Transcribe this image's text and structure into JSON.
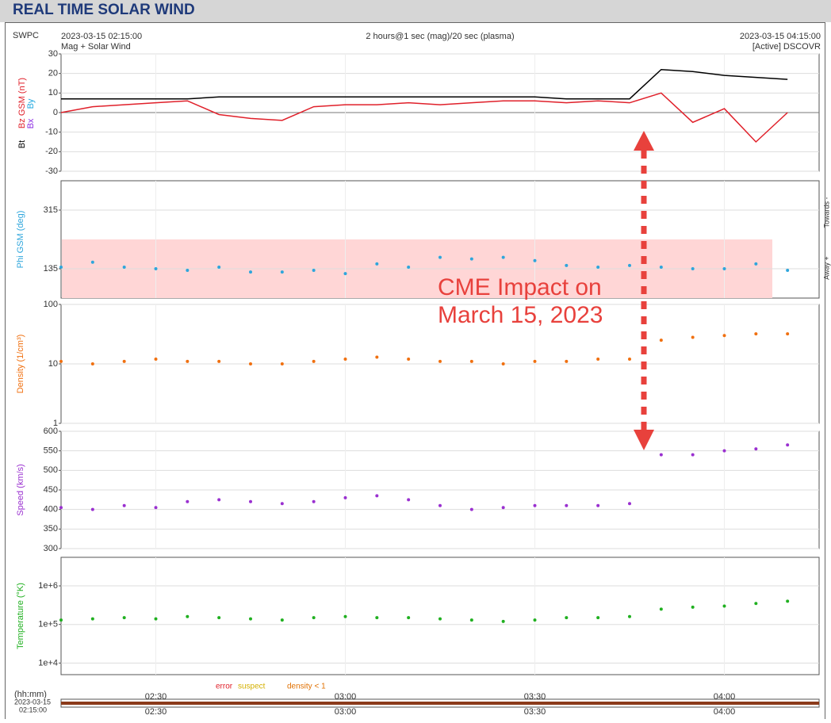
{
  "title": "REAL TIME SOLAR WIND",
  "header": {
    "agency": "SWPC",
    "start": "2023-03-15 02:15:00",
    "subtitle": "Mag + Solar Wind",
    "center": "2 hours@1 sec (mag)/20 sec (plasma)",
    "end": "2023-03-15 04:15:00",
    "source": "[Active] DSCOVR"
  },
  "time_axis": {
    "label": "(hh:mm)",
    "start_date": "2023-03-15",
    "start_time": "02:15:00",
    "xlim": [
      "02:15",
      "04:15"
    ],
    "xticks": [
      "02:30",
      "03:00",
      "03:30",
      "04:00"
    ]
  },
  "chart_data": [
    {
      "type": "line",
      "ylim": [
        -30,
        30
      ],
      "yticks": [
        -30,
        -20,
        -10,
        0,
        10,
        20,
        30
      ],
      "log": false,
      "grid": true,
      "extra_labels": [
        {
          "text": "Bx",
          "color": "#8a2be2"
        },
        {
          "text": "By",
          "color": "#1fa8e0"
        }
      ],
      "x": [
        "02:15",
        "02:20",
        "02:25",
        "02:30",
        "02:35",
        "02:40",
        "02:45",
        "02:50",
        "02:55",
        "03:00",
        "03:05",
        "03:10",
        "03:15",
        "03:20",
        "03:25",
        "03:30",
        "03:35",
        "03:40",
        "03:45",
        "03:50",
        "03:55",
        "04:00",
        "04:05",
        "04:10"
      ],
      "series": [
        {
          "name": "Bt",
          "color": "#000000",
          "values": [
            7,
            7,
            7,
            7,
            7,
            8,
            8,
            8,
            8,
            8,
            8,
            8,
            8,
            8,
            8,
            8,
            7,
            7,
            7,
            22,
            21,
            19,
            18,
            17
          ]
        },
        {
          "name": "Bz GSM (nT)",
          "color": "#e0202a",
          "values": [
            0,
            3,
            4,
            5,
            6,
            -1,
            -3,
            -4,
            3,
            4,
            4,
            5,
            4,
            5,
            6,
            6,
            5,
            6,
            5,
            10,
            -5,
            2,
            -15,
            0
          ]
        }
      ]
    },
    {
      "type": "scatter",
      "ylabel": "Phi GSM (deg)",
      "ylim": [
        45,
        405
      ],
      "yticks": [
        135,
        315
      ],
      "log": false,
      "grid": true,
      "band": {
        "range": [
          45,
          225
        ],
        "color": "#ffd6d6"
      },
      "right_labels": [
        "Towards -",
        "Away +"
      ],
      "x": [
        "02:15",
        "02:20",
        "02:25",
        "02:30",
        "02:35",
        "02:40",
        "02:45",
        "02:50",
        "02:55",
        "03:00",
        "03:05",
        "03:10",
        "03:15",
        "03:20",
        "03:25",
        "03:30",
        "03:35",
        "03:40",
        "03:45",
        "03:50",
        "03:55",
        "04:00",
        "04:05",
        "04:10"
      ],
      "series": [
        {
          "name": "Phi",
          "color": "#2ea6dc",
          "values": [
            140,
            155,
            140,
            135,
            130,
            140,
            125,
            125,
            130,
            120,
            150,
            140,
            170,
            165,
            170,
            160,
            145,
            140,
            145,
            140,
            135,
            135,
            150,
            130
          ]
        }
      ]
    },
    {
      "type": "scatter",
      "ylabel": "Density (1/cm³)",
      "ylim": [
        1,
        100
      ],
      "yticks": [
        1,
        10,
        100
      ],
      "log": true,
      "grid": true,
      "x": [
        "02:15",
        "02:20",
        "02:25",
        "02:30",
        "02:35",
        "02:40",
        "02:45",
        "02:50",
        "02:55",
        "03:00",
        "03:05",
        "03:10",
        "03:15",
        "03:20",
        "03:25",
        "03:30",
        "03:35",
        "03:40",
        "03:45",
        "03:50",
        "03:55",
        "04:00",
        "04:05",
        "04:10"
      ],
      "series": [
        {
          "name": "Density",
          "color": "#f07010",
          "values": [
            11,
            10,
            11,
            12,
            11,
            11,
            10,
            10,
            11,
            12,
            13,
            12,
            11,
            11,
            10,
            11,
            11,
            12,
            12,
            25,
            28,
            30,
            32,
            32
          ]
        }
      ]
    },
    {
      "type": "scatter",
      "ylabel": "Speed (km/s)",
      "ylim": [
        300,
        600
      ],
      "yticks": [
        300,
        350,
        400,
        450,
        500,
        550,
        600
      ],
      "log": false,
      "grid": true,
      "x": [
        "02:15",
        "02:20",
        "02:25",
        "02:30",
        "02:35",
        "02:40",
        "02:45",
        "02:50",
        "02:55",
        "03:00",
        "03:05",
        "03:10",
        "03:15",
        "03:20",
        "03:25",
        "03:30",
        "03:35",
        "03:40",
        "03:45",
        "03:50",
        "03:55",
        "04:00",
        "04:05",
        "04:10"
      ],
      "series": [
        {
          "name": "Speed",
          "color": "#9a30d0",
          "values": [
            405,
            400,
            410,
            405,
            420,
            425,
            420,
            415,
            420,
            430,
            435,
            425,
            410,
            400,
            405,
            410,
            410,
            410,
            415,
            540,
            540,
            550,
            555,
            565
          ]
        }
      ]
    },
    {
      "type": "scatter",
      "ylabel": "Temperature (°K)",
      "ylim": [
        5000,
        5500000
      ],
      "yticks": [
        {
          "value": 10000,
          "label": "1e+4"
        },
        {
          "value": 100000,
          "label": "1e+5"
        },
        {
          "value": 1000000,
          "label": "1e+6"
        }
      ],
      "log": true,
      "grid": true,
      "x": [
        "02:15",
        "02:20",
        "02:25",
        "02:30",
        "02:35",
        "02:40",
        "02:45",
        "02:50",
        "02:55",
        "03:00",
        "03:05",
        "03:10",
        "03:15",
        "03:20",
        "03:25",
        "03:30",
        "03:35",
        "03:40",
        "03:45",
        "03:50",
        "03:55",
        "04:00",
        "04:05",
        "04:10"
      ],
      "series": [
        {
          "name": "Temperature",
          "color": "#20b020",
          "values": [
            130000,
            140000,
            150000,
            140000,
            160000,
            150000,
            140000,
            130000,
            150000,
            160000,
            150000,
            150000,
            140000,
            130000,
            120000,
            130000,
            150000,
            150000,
            160000,
            250000,
            280000,
            300000,
            350000,
            400000
          ]
        }
      ]
    }
  ],
  "flags": [
    {
      "text": "error",
      "color": "#e0202a"
    },
    {
      "text": "suspect",
      "color": "#d4b000"
    },
    {
      "text": "density < 1",
      "color": "#e07000"
    }
  ],
  "annotation": [
    "CME Impact on",
    "March 15, 2023"
  ]
}
